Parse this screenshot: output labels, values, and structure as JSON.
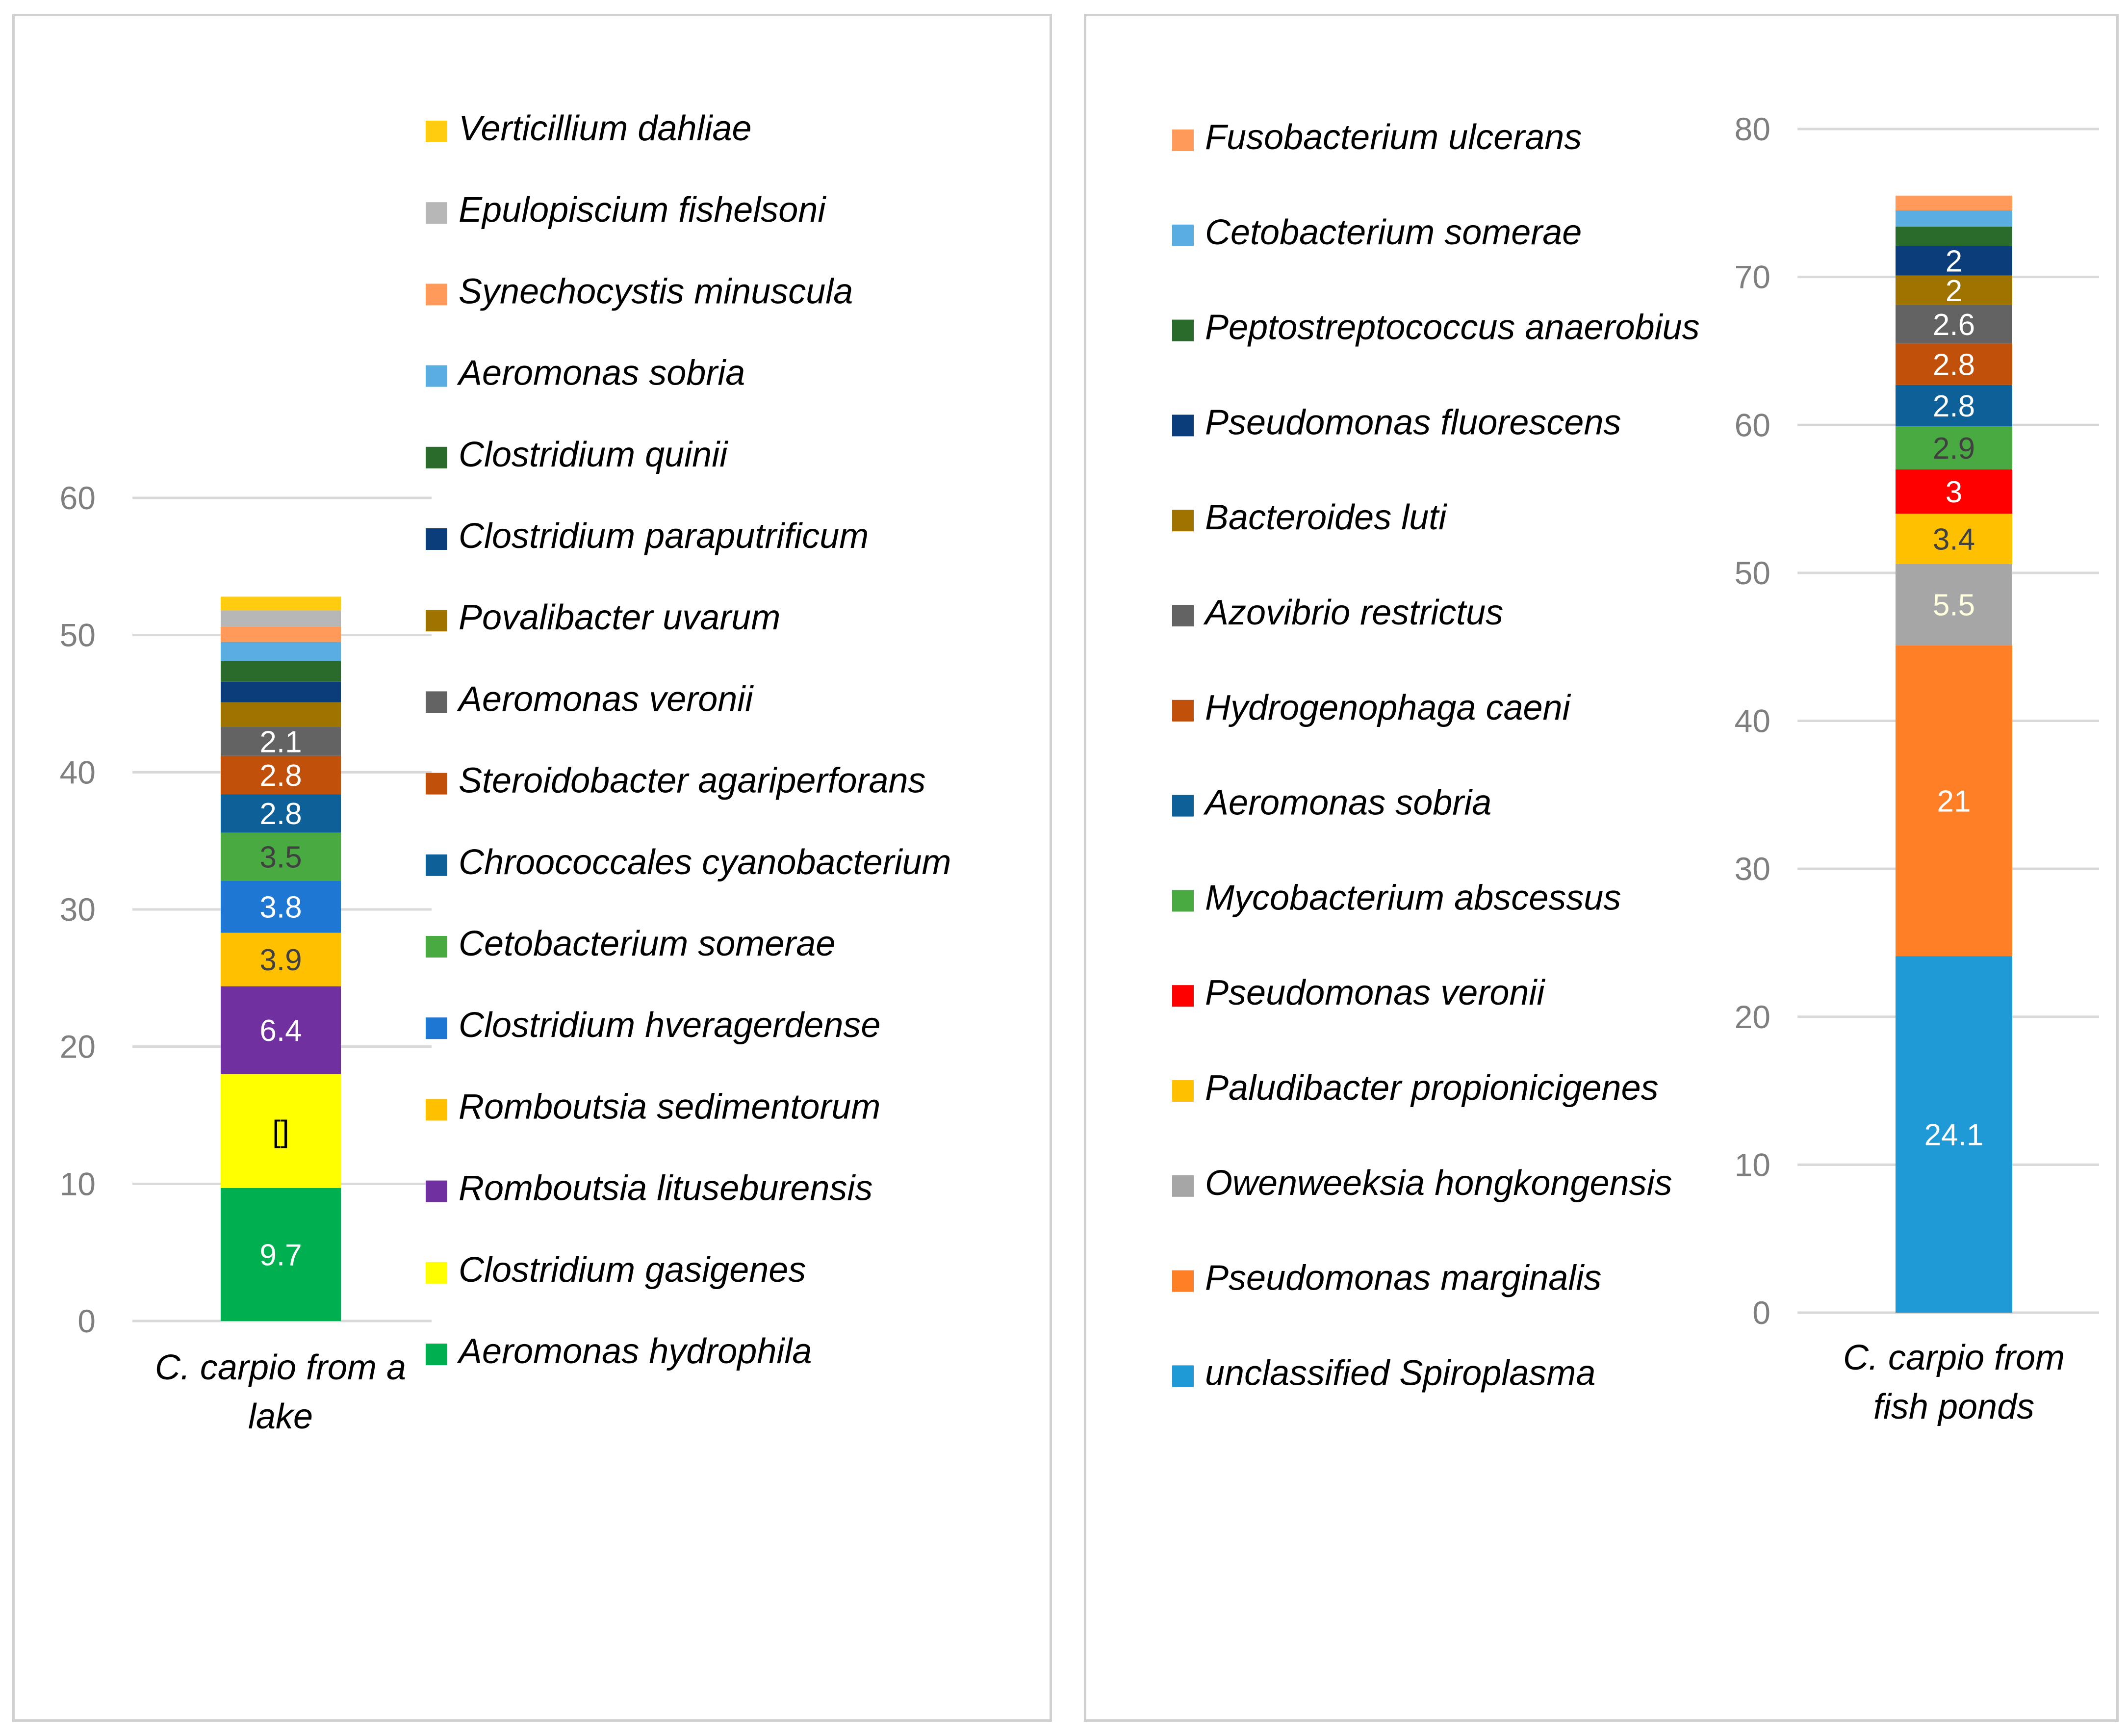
{
  "chart_data": [
    {
      "type": "bar",
      "stacked": true,
      "categories": [
        "C. carpio from a lake"
      ],
      "ylim": [
        0,
        60
      ],
      "yticks": [
        0,
        10,
        20,
        30,
        40,
        50,
        60
      ],
      "legend_position": "right",
      "series": [
        {
          "name": "Aeromonas hydrophila",
          "values": [
            9.7
          ],
          "label": "9.7",
          "color": "#00b050",
          "label_color": "#ffffff"
        },
        {
          "name": "Clostridium gasigenes",
          "values": [
            8.3
          ],
          "label": "[]",
          "color": "#ffff00",
          "label_color": "#000000"
        },
        {
          "name": "Romboutsia lituseburensis",
          "values": [
            6.4
          ],
          "label": "6.4",
          "color": "#7030a0",
          "label_color": "#ffffff"
        },
        {
          "name": "Romboutsia sedimentorum",
          "values": [
            3.9
          ],
          "label": "3.9",
          "color": "#ffc000",
          "label_color": "#404040"
        },
        {
          "name": "Clostridium hveragerdense",
          "values": [
            3.8
          ],
          "label": "3.8",
          "color": "#1f77d4",
          "label_color": "#ffffff"
        },
        {
          "name": "Cetobacterium somerae",
          "values": [
            3.5
          ],
          "label": "3.5",
          "color": "#4aaa42",
          "label_color": "#404040"
        },
        {
          "name": "Chroococcales cyanobacterium",
          "values": [
            2.8
          ],
          "label": "2.8",
          "color": "#0e6198",
          "label_color": "#ffffff"
        },
        {
          "name": "Steroidobacter agariperforans",
          "values": [
            2.8
          ],
          "label": "2.8",
          "color": "#c0500a",
          "label_color": "#ffffff"
        },
        {
          "name": "Aeromonas veronii",
          "values": [
            2.1
          ],
          "label": "2.1",
          "color": "#636363",
          "label_color": "#ffffff"
        },
        {
          "name": "Povalibacter uvarum",
          "values": [
            1.8
          ],
          "label": "",
          "color": "#9e7300",
          "label_color": "#ffffff"
        },
        {
          "name": "Clostridium paraputrificum",
          "values": [
            1.5
          ],
          "label": "",
          "color": "#0b3d7a",
          "label_color": "#ffffff"
        },
        {
          "name": "Clostridium quinii",
          "values": [
            1.5
          ],
          "label": "",
          "color": "#2a6a2a",
          "label_color": "#ffffff"
        },
        {
          "name": "Aeromonas sobria",
          "values": [
            1.4
          ],
          "label": "",
          "color": "#5aade0",
          "label_color": "#ffffff"
        },
        {
          "name": "Synechocystis minuscula",
          "values": [
            1.1
          ],
          "label": "",
          "color": "#ff9a5a",
          "label_color": "#ffffff"
        },
        {
          "name": "Epulopiscium fishelsoni",
          "values": [
            1.2
          ],
          "label": "",
          "color": "#b7b7b7",
          "label_color": "#ffffff"
        },
        {
          "name": "Verticillium dahliae",
          "values": [
            1.0
          ],
          "label": "",
          "color": "#ffcc10",
          "label_color": "#ffffff"
        }
      ]
    },
    {
      "type": "bar",
      "stacked": true,
      "categories": [
        "C. carpio from fish ponds"
      ],
      "ylim": [
        0,
        80
      ],
      "yticks": [
        0,
        10,
        20,
        30,
        40,
        50,
        60,
        70,
        80
      ],
      "legend_position": "left",
      "series": [
        {
          "name": "unclassified Spiroplasma",
          "values": [
            24.1
          ],
          "label": "24.1",
          "color": "#1f9ad6",
          "label_color": "#ffffff"
        },
        {
          "name": "Pseudomonas marginalis",
          "values": [
            21
          ],
          "label": "21",
          "color": "#ff7f27",
          "label_color": "#ffffff"
        },
        {
          "name": "Owenweeksia hongkongensis",
          "values": [
            5.5
          ],
          "label": "5.5",
          "color": "#a6a6a6",
          "label_color": "#ffffdd"
        },
        {
          "name": "Paludibacter propionicigenes",
          "values": [
            3.4
          ],
          "label": "3.4",
          "color": "#ffc000",
          "label_color": "#404040"
        },
        {
          "name": "Pseudomonas veronii",
          "values": [
            3
          ],
          "label": "3",
          "color": "#ff0000",
          "label_color": "#ffffff"
        },
        {
          "name": "Mycobacterium abscessus",
          "values": [
            2.9
          ],
          "label": "2.9",
          "color": "#4aaa42",
          "label_color": "#404040"
        },
        {
          "name": "Aeromonas sobria",
          "values": [
            2.8
          ],
          "label": "2.8",
          "color": "#0e6198",
          "label_color": "#ffffff"
        },
        {
          "name": "Hydrogenophaga caeni",
          "values": [
            2.8
          ],
          "label": "2.8",
          "color": "#c0500a",
          "label_color": "#ffffff"
        },
        {
          "name": "Azovibrio restrictus",
          "values": [
            2.6
          ],
          "label": "2.6",
          "color": "#636363",
          "label_color": "#ffffff"
        },
        {
          "name": "Bacteroides luti",
          "values": [
            2
          ],
          "label": "2",
          "color": "#9e7300",
          "label_color": "#ffffff"
        },
        {
          "name": "Pseudomonas fluorescens",
          "values": [
            2
          ],
          "label": "2",
          "color": "#0b3d7a",
          "label_color": "#ffffff"
        },
        {
          "name": "Peptostreptococcus anaerobius",
          "values": [
            1.3
          ],
          "label": "",
          "color": "#2a6a2a",
          "label_color": "#ffffff"
        },
        {
          "name": "Cetobacterium somerae",
          "values": [
            1.1
          ],
          "label": "",
          "color": "#5aade0",
          "label_color": "#ffffff"
        },
        {
          "name": "Fusobacterium ulcerans",
          "values": [
            1.0
          ],
          "label": "",
          "color": "#ff9a5a",
          "label_color": "#ffffff"
        }
      ]
    }
  ]
}
